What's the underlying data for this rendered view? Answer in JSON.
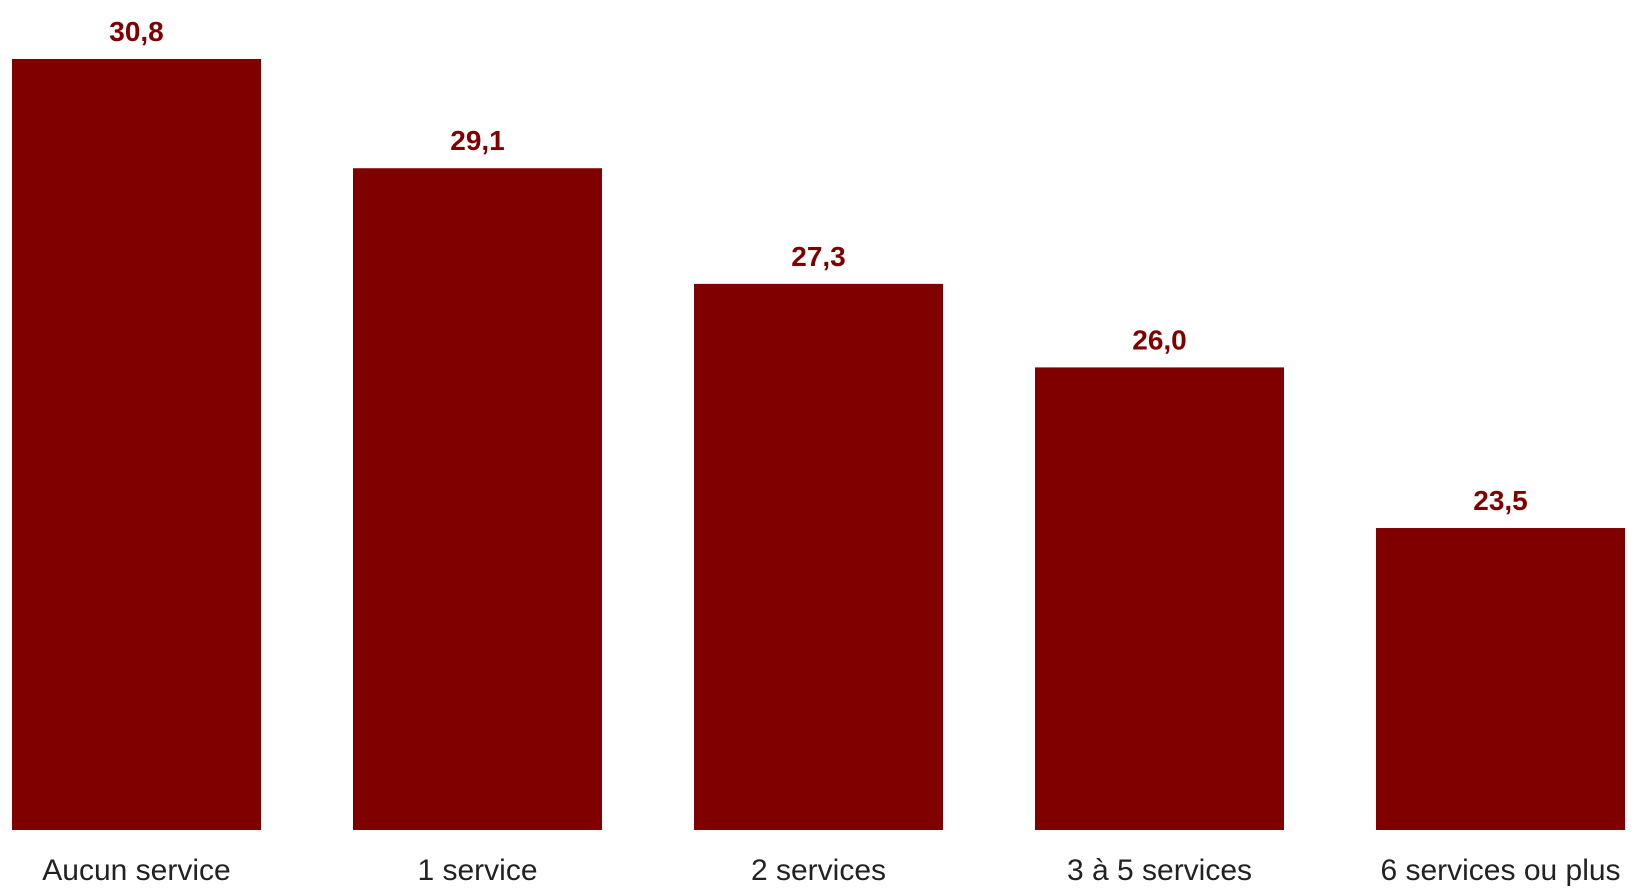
{
  "chart_data": {
    "type": "bar",
    "categories": [
      "Aucun service",
      "1 service",
      "2 services",
      "3 à 5 services",
      "6 services ou plus"
    ],
    "values": [
      30.8,
      29.1,
      27.3,
      26.0,
      23.5
    ],
    "data_labels": [
      "30,8",
      "29,1",
      "27,3",
      "26,0",
      "23,5"
    ],
    "title": "",
    "xlabel": "",
    "ylabel": "",
    "ylim": [
      18.8,
      30.8
    ],
    "grid": false,
    "legend": "none",
    "colors": {
      "bar": "#800000",
      "value_label": "#800000",
      "category_label": "#222222"
    }
  }
}
